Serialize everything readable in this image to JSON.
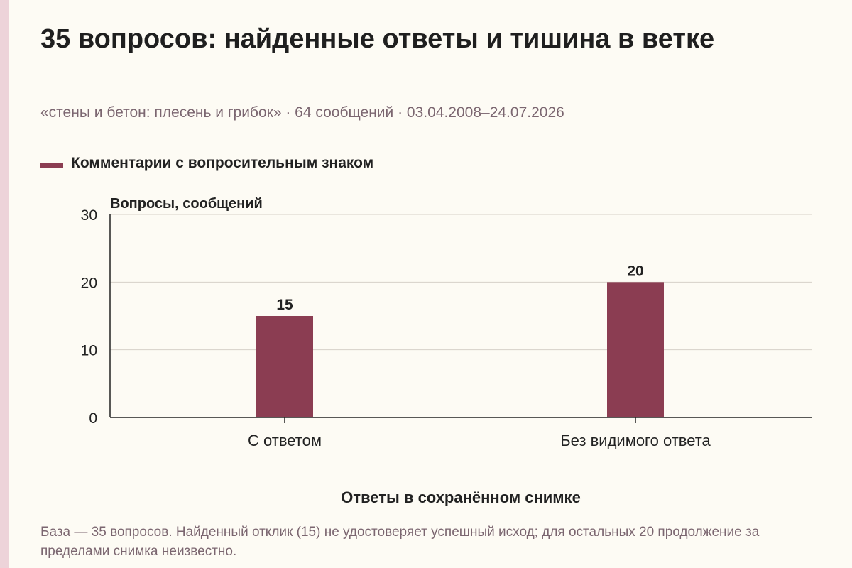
{
  "header": {
    "title": "35 вопросов: найденные ответы и тишина в ветке",
    "subtitle": "«стены и бетон: плесень и грибок» · 64 сообщений · 03.04.2008–24.07.2026"
  },
  "legend": {
    "label": "Комментарии с вопросительным знаком"
  },
  "footnote": "База — 35 вопросов. Найденный отклик (15) не удостоверяет успешный исход; для остальных 20 продолжение за пределами снимка неизвестно.",
  "colors": {
    "bar": "#8b3d52",
    "grid": "#d6d0c8",
    "axis": "#222222",
    "background": "#fdfbf4",
    "muted_text": "#7b6670",
    "accent_strip": "#edd3d9"
  },
  "chart_data": {
    "type": "bar",
    "categories": [
      "С ответом",
      "Без видимого ответа"
    ],
    "series": [
      {
        "name": "Комментарии с вопросительным знаком",
        "values": [
          15,
          20
        ]
      }
    ],
    "data_labels": [
      "15",
      "20"
    ],
    "ylabel": "Вопросы, сообщений",
    "xlabel": "Ответы в сохранённом снимке",
    "ylim": [
      0,
      30
    ],
    "yticks": [
      0,
      10,
      20,
      30
    ],
    "ytick_labels": [
      "0",
      "10",
      "20",
      "30"
    ],
    "grid": true,
    "legend_position": "top-left"
  }
}
